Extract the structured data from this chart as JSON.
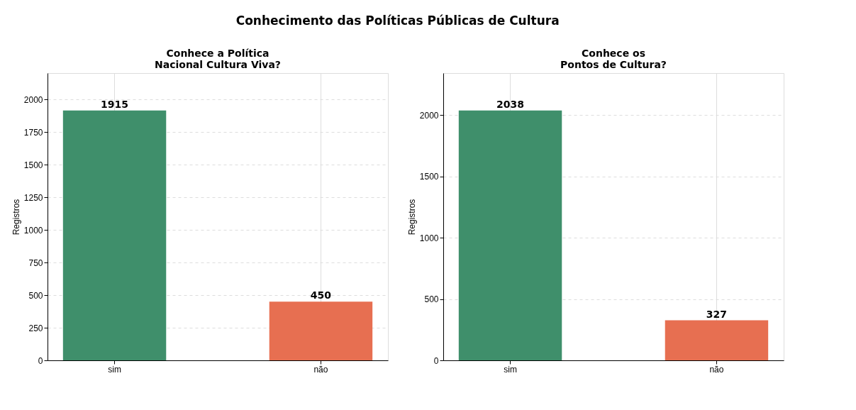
{
  "chart_data": [
    {
      "type": "bar",
      "title": "Conhece a Política\nNacional Cultura Viva?",
      "annotations": [
        "Conhecimento das Políticas Públicas de Cultura"
      ],
      "ylabel": "Registros",
      "categories": [
        "sim",
        "não"
      ],
      "values": [
        1915,
        450
      ],
      "colors": [
        "#3f8f6b",
        "#e76f51"
      ],
      "ylim": [
        0,
        2202
      ],
      "yticks": [
        0,
        250,
        500,
        750,
        1000,
        1250,
        1500,
        1750,
        2000
      ],
      "grid": true,
      "data_labels": true
    },
    {
      "type": "bar",
      "title": "Conhece os\nPontos de Cultura?",
      "ylabel": "Registros",
      "categories": [
        "sim",
        "não"
      ],
      "values": [
        2038,
        327
      ],
      "colors": [
        "#3f8f6b",
        "#e76f51"
      ],
      "ylim": [
        0,
        2344
      ],
      "yticks": [
        0,
        500,
        1000,
        1500,
        2000
      ],
      "grid": true,
      "data_labels": true
    }
  ]
}
